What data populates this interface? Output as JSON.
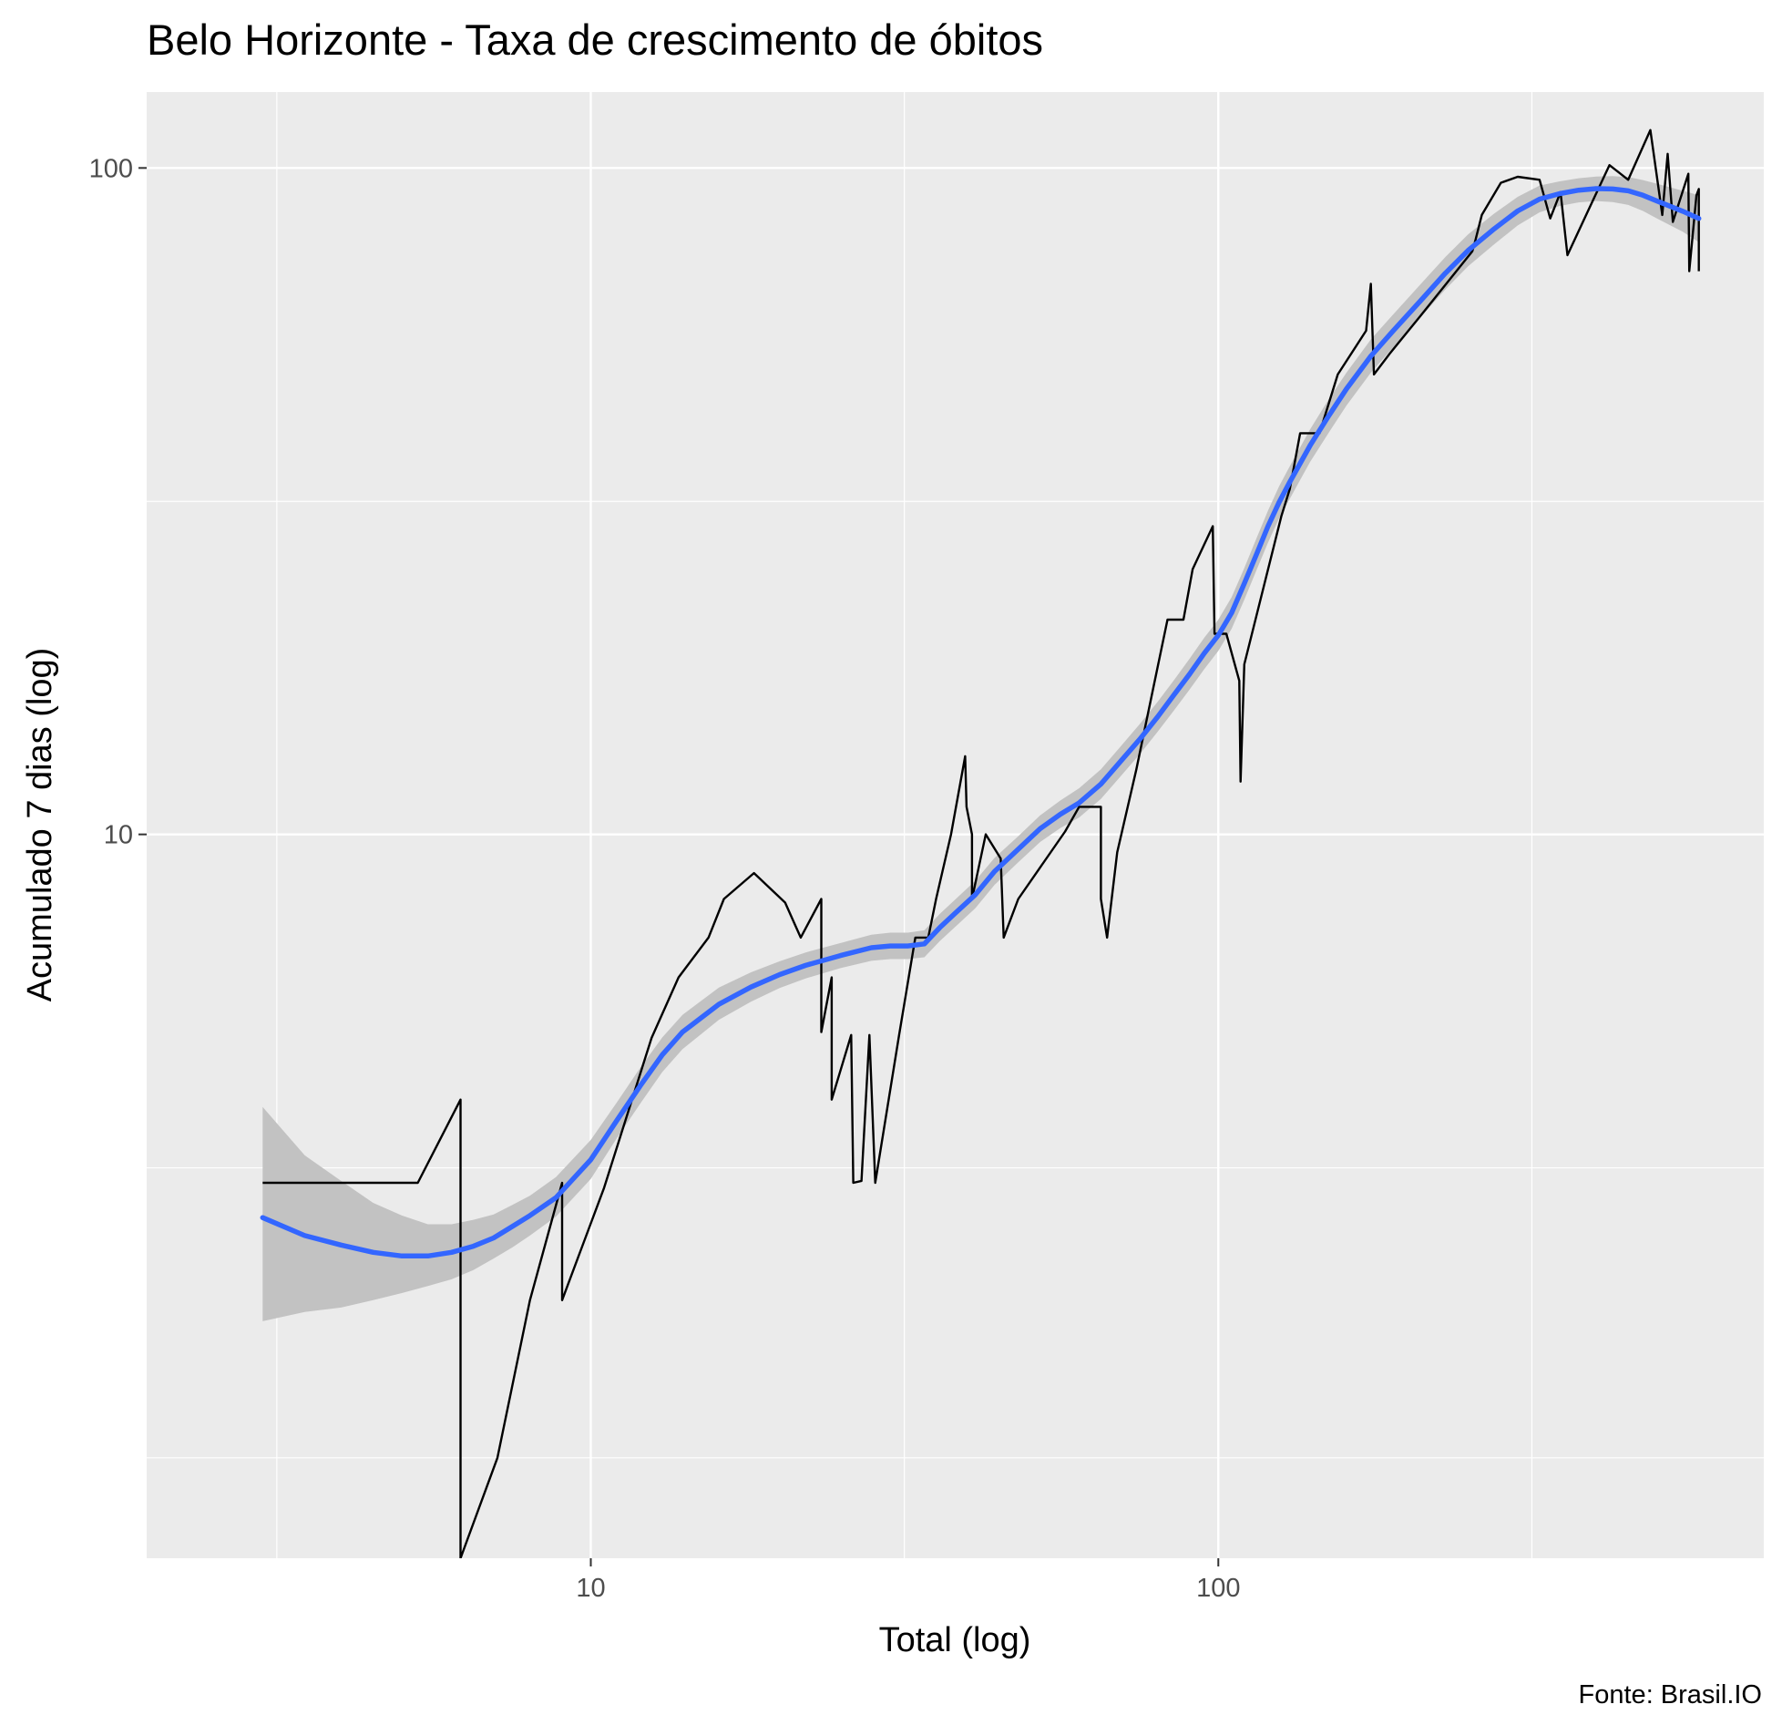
{
  "chart_data": {
    "type": "line",
    "title": "Belo Horizonte - Taxa de crescimento de óbitos",
    "xlabel": "Total (log)",
    "ylabel": "Acumulado 7 dias (log)",
    "caption": "Fonte: Brasil.IO",
    "x_scale": "log10",
    "y_scale": "log10",
    "xlim": [
      1.96,
      740
    ],
    "ylim": [
      0.82,
      130
    ],
    "x_ticks": [
      {
        "value": 10,
        "label": "10"
      },
      {
        "value": 100,
        "label": "100"
      }
    ],
    "y_ticks": [
      {
        "value": 10,
        "label": "10"
      },
      {
        "value": 100,
        "label": "100"
      }
    ],
    "x_minor_ticks": [
      3.16,
      31.6,
      316
    ],
    "y_minor_ticks": [
      1.16,
      3.16,
      31.6
    ],
    "grid": true,
    "panel_background": "#ebebeb",
    "series": [
      {
        "type": "line",
        "color": "#000000",
        "points": [
          [
            3,
            3
          ],
          [
            5.3,
            3
          ],
          [
            6.2,
            4
          ],
          [
            6.2,
            0.82
          ],
          [
            7.1,
            1.16
          ],
          [
            8,
            2
          ],
          [
            9,
            3
          ],
          [
            9,
            2
          ],
          [
            10.5,
            2.95
          ],
          [
            12.5,
            4.95
          ],
          [
            13.8,
            6.1
          ],
          [
            15.4,
            7
          ],
          [
            16.3,
            8
          ],
          [
            18.2,
            8.75
          ],
          [
            20.4,
            7.9
          ],
          [
            21.6,
            7
          ],
          [
            23.3,
            8
          ],
          [
            23.3,
            5.05
          ],
          [
            24.2,
            6.1
          ],
          [
            24.2,
            4
          ],
          [
            26,
            5
          ],
          [
            26.2,
            3
          ],
          [
            27,
            3.02
          ],
          [
            27.8,
            5
          ],
          [
            28.4,
            3
          ],
          [
            31,
            5
          ],
          [
            32.9,
            7
          ],
          [
            34.5,
            7
          ],
          [
            35.5,
            8
          ],
          [
            37.5,
            10
          ],
          [
            39.5,
            13.1
          ],
          [
            39.7,
            11
          ],
          [
            40.5,
            10
          ],
          [
            40.5,
            8
          ],
          [
            42.6,
            10
          ],
          [
            45,
            9.2
          ],
          [
            45.5,
            7
          ],
          [
            48,
            8
          ],
          [
            57,
            10.1
          ],
          [
            60,
            11
          ],
          [
            65,
            11
          ],
          [
            65,
            8
          ],
          [
            66.5,
            7
          ],
          [
            69,
            9.4
          ],
          [
            74,
            12.5
          ],
          [
            83,
            21
          ],
          [
            88,
            21
          ],
          [
            91,
            25
          ],
          [
            98,
            29
          ],
          [
            98.6,
            20
          ],
          [
            103,
            20
          ],
          [
            108,
            17
          ],
          [
            108.5,
            12
          ],
          [
            110,
            18
          ],
          [
            126,
            30
          ],
          [
            130,
            33
          ],
          [
            135,
            40
          ],
          [
            145,
            40
          ],
          [
            155,
            49
          ],
          [
            172,
            57
          ],
          [
            175,
            67
          ],
          [
            177,
            49
          ],
          [
            188,
            52.8
          ],
          [
            210,
            60
          ],
          [
            254,
            75
          ],
          [
            257,
            78
          ],
          [
            263,
            85
          ],
          [
            282,
            95
          ],
          [
            300,
            97
          ],
          [
            325,
            96
          ],
          [
            338,
            84
          ],
          [
            351,
            92
          ],
          [
            360,
            74
          ],
          [
            390,
            87
          ],
          [
            420,
            101
          ],
          [
            450,
            96
          ],
          [
            488,
            114
          ],
          [
            510,
            85
          ],
          [
            520,
            105
          ],
          [
            530,
            83
          ],
          [
            561,
            98
          ],
          [
            563,
            70
          ],
          [
            578,
            91
          ],
          [
            583,
            93
          ],
          [
            583,
            70
          ]
        ]
      },
      {
        "type": "smooth",
        "color": "#3366ff",
        "band_color": "#c2c2c2",
        "points": [
          [
            3,
            2.66
          ],
          [
            3.5,
            2.5
          ],
          [
            4,
            2.42
          ],
          [
            4.5,
            2.36
          ],
          [
            5,
            2.33
          ],
          [
            5.5,
            2.33
          ],
          [
            6,
            2.36
          ],
          [
            6.5,
            2.41
          ],
          [
            7,
            2.48
          ],
          [
            7.5,
            2.58
          ],
          [
            8,
            2.68
          ],
          [
            8.8,
            2.85
          ],
          [
            10,
            3.25
          ],
          [
            11,
            3.72
          ],
          [
            12,
            4.2
          ],
          [
            13,
            4.67
          ],
          [
            14,
            5.05
          ],
          [
            16,
            5.56
          ],
          [
            18,
            5.9
          ],
          [
            20,
            6.16
          ],
          [
            22,
            6.36
          ],
          [
            25,
            6.58
          ],
          [
            28,
            6.76
          ],
          [
            30,
            6.8
          ],
          [
            32,
            6.8
          ],
          [
            34,
            6.85
          ],
          [
            36,
            7.25
          ],
          [
            38,
            7.6
          ],
          [
            41,
            8.12
          ],
          [
            44,
            8.8
          ],
          [
            48,
            9.5
          ],
          [
            52,
            10.2
          ],
          [
            56,
            10.72
          ],
          [
            60,
            11.15
          ],
          [
            65,
            11.9
          ],
          [
            70,
            12.9
          ],
          [
            75,
            13.9
          ],
          [
            80,
            15
          ],
          [
            85,
            16.2
          ],
          [
            90,
            17.4
          ],
          [
            95,
            18.7
          ],
          [
            100,
            19.9
          ],
          [
            105,
            21.5
          ],
          [
            110,
            23.8
          ],
          [
            115,
            26.3
          ],
          [
            120,
            29
          ],
          [
            125,
            31.5
          ],
          [
            130,
            33.8
          ],
          [
            140,
            38.3
          ],
          [
            150,
            42.5
          ],
          [
            160,
            46.6
          ],
          [
            175,
            52.2
          ],
          [
            190,
            57
          ],
          [
            210,
            63.2
          ],
          [
            230,
            69.5
          ],
          [
            250,
            75.2
          ],
          [
            275,
            81
          ],
          [
            300,
            86.2
          ],
          [
            325,
            89.8
          ],
          [
            350,
            91.5
          ],
          [
            375,
            92.6
          ],
          [
            400,
            93.1
          ],
          [
            425,
            93
          ],
          [
            450,
            92.4
          ],
          [
            475,
            91
          ],
          [
            500,
            89.2
          ],
          [
            550,
            86.1
          ],
          [
            583,
            84
          ]
        ],
        "band": [
          [
            3,
            1.86,
            3.9
          ],
          [
            3.5,
            1.92,
            3.3
          ],
          [
            4,
            1.95,
            3.02
          ],
          [
            4.5,
            2,
            2.8
          ],
          [
            5,
            2.05,
            2.68
          ],
          [
            5.5,
            2.1,
            2.6
          ],
          [
            6,
            2.15,
            2.6
          ],
          [
            6.5,
            2.22,
            2.64
          ],
          [
            7,
            2.31,
            2.69
          ],
          [
            7.5,
            2.4,
            2.78
          ],
          [
            8,
            2.5,
            2.87
          ],
          [
            8.8,
            2.67,
            3.06
          ],
          [
            10,
            3.04,
            3.48
          ],
          [
            11,
            3.5,
            3.96
          ],
          [
            12,
            3.95,
            4.47
          ],
          [
            13,
            4.4,
            4.96
          ],
          [
            14,
            4.76,
            5.36
          ],
          [
            16,
            5.27,
            5.89
          ],
          [
            18,
            5.61,
            6.21
          ],
          [
            20,
            5.88,
            6.45
          ],
          [
            22,
            6.08,
            6.65
          ],
          [
            25,
            6.3,
            6.87
          ],
          [
            28,
            6.46,
            7.07
          ],
          [
            30,
            6.5,
            7.12
          ],
          [
            32,
            6.5,
            7.12
          ],
          [
            34,
            6.54,
            7.18
          ],
          [
            36,
            6.92,
            7.6
          ],
          [
            38,
            7.25,
            7.97
          ],
          [
            41,
            7.75,
            8.52
          ],
          [
            44,
            8.4,
            9.22
          ],
          [
            48,
            9.08,
            9.94
          ],
          [
            52,
            9.74,
            10.68
          ],
          [
            56,
            10.22,
            11.24
          ],
          [
            60,
            10.6,
            11.73
          ],
          [
            65,
            11.3,
            12.52
          ],
          [
            70,
            12.25,
            13.58
          ],
          [
            75,
            13.2,
            14.65
          ],
          [
            80,
            14.25,
            15.8
          ],
          [
            85,
            15.35,
            17.05
          ],
          [
            90,
            16.5,
            18.35
          ],
          [
            95,
            17.7,
            19.73
          ],
          [
            100,
            18.85,
            21
          ],
          [
            105,
            20.35,
            22.7
          ],
          [
            110,
            22.5,
            25.1
          ],
          [
            115,
            24.9,
            27.8
          ],
          [
            120,
            27.4,
            30.6
          ],
          [
            125,
            29.8,
            33.3
          ],
          [
            130,
            31.9,
            35.7
          ],
          [
            140,
            36.2,
            40.5
          ],
          [
            150,
            40.1,
            45
          ],
          [
            160,
            44,
            49.3
          ],
          [
            175,
            49.3,
            55.3
          ],
          [
            190,
            53.8,
            60.3
          ],
          [
            210,
            59.7,
            66.9
          ],
          [
            230,
            65.7,
            73.5
          ],
          [
            250,
            71.2,
            79.5
          ],
          [
            275,
            76.8,
            85.4
          ],
          [
            300,
            82,
            90.5
          ],
          [
            325,
            85.8,
            94.1
          ],
          [
            350,
            87.7,
            95.5
          ],
          [
            375,
            88.8,
            96.5
          ],
          [
            400,
            89.2,
            97.1
          ],
          [
            425,
            88.9,
            97.2
          ],
          [
            450,
            88,
            96.9
          ],
          [
            475,
            86.2,
            95.9
          ],
          [
            500,
            84,
            94.7
          ],
          [
            550,
            80.2,
            92.4
          ],
          [
            583,
            77.4,
            91
          ]
        ]
      }
    ]
  }
}
